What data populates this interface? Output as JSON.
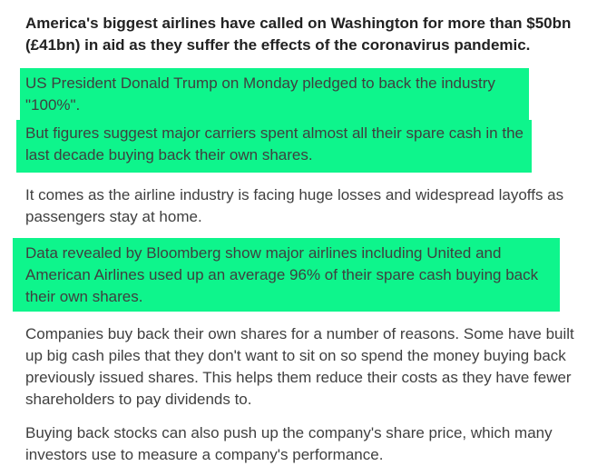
{
  "page": {
    "background_color": "#ffffff",
    "body_text_color": "#3f3f3f",
    "lead_text_color": "#222222",
    "highlight_color": "#0ef58c"
  },
  "article": {
    "paragraphs": [
      {
        "style": "bold-lead",
        "highlighted": false,
        "text": "America's biggest airlines have called on Washington for more than $50bn (£41bn) in aid as they suffer the effects of the coronavirus pandemic."
      },
      {
        "style": "body",
        "highlighted": true,
        "text": "US President Donald Trump on Monday pledged to back the industry \"100%\"."
      },
      {
        "style": "body",
        "highlighted": true,
        "text": "But figures suggest major carriers spent almost all their spare cash in the last decade buying back their own shares."
      },
      {
        "style": "body",
        "highlighted": false,
        "text": "It comes as the airline industry is facing huge losses and widespread layoffs as passengers stay at home."
      },
      {
        "style": "body",
        "highlighted": true,
        "text": "Data revealed by Bloomberg show major airlines including United and American Airlines used up an average 96% of their spare cash buying back their own shares."
      },
      {
        "style": "body",
        "highlighted": false,
        "text": "Companies buy back their own shares for a number of reasons. Some have built up big cash piles that they don't want to sit on so spend the money buying back previously issued shares. This helps them reduce their costs as they have fewer shareholders to pay dividends to."
      },
      {
        "style": "body",
        "highlighted": false,
        "text": "Buying back stocks can also push up the company's share price, which many investors use to measure a company's performance."
      }
    ]
  }
}
